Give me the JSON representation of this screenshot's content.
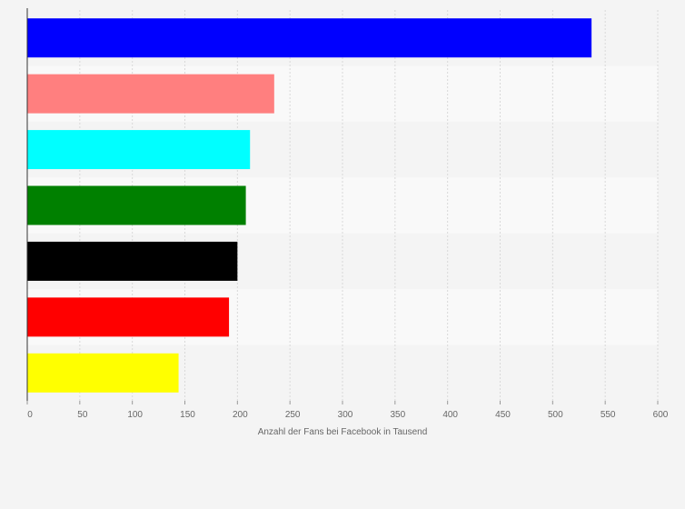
{
  "chart_data": {
    "type": "bar",
    "orientation": "horizontal",
    "title": "",
    "xlabel": "Anzahl der Fans bei Facebook in Tausend",
    "ylabel": "",
    "xlim": [
      0,
      600
    ],
    "ticks": [
      0,
      50,
      100,
      150,
      200,
      250,
      300,
      350,
      400,
      450,
      500,
      550,
      600
    ],
    "grid": true,
    "legend": "none",
    "categories": [
      "",
      "",
      "",
      "",
      "",
      "",
      ""
    ],
    "values": [
      537,
      235,
      212,
      208,
      200,
      192,
      144
    ],
    "colors": [
      "#0000ff",
      "#ff7f7f",
      "#00ffff",
      "#008000",
      "#000000",
      "#ff0000",
      "#ffff00"
    ]
  }
}
